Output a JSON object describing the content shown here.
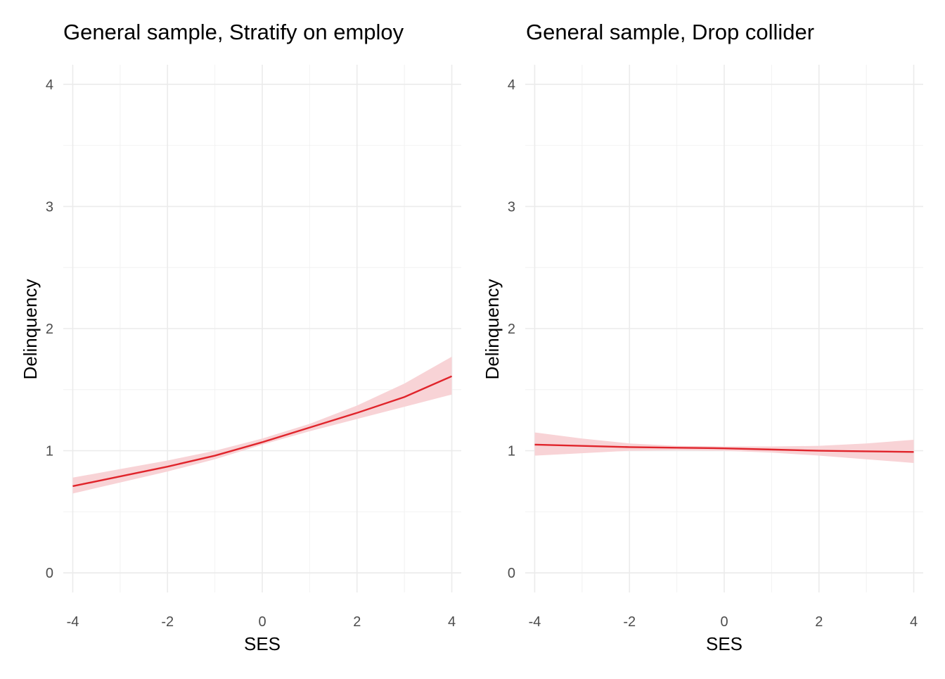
{
  "chart_data": [
    {
      "type": "line",
      "title": "General sample, Stratify on employ",
      "xlabel": "SES",
      "ylabel": "Delinquency",
      "xlim": [
        -4.2,
        4.2
      ],
      "ylim": [
        -0.16,
        4.16
      ],
      "x_ticks": [
        -4,
        -2,
        0,
        2,
        4
      ],
      "y_ticks": [
        0,
        1,
        2,
        3,
        4
      ],
      "grid": true,
      "line_color": "#e0242b",
      "band_color": "#f8d3d6",
      "series": [
        {
          "x": [
            -4,
            -3,
            -2,
            -1,
            0,
            1,
            2,
            3,
            4
          ],
          "y": [
            0.71,
            0.79,
            0.87,
            0.96,
            1.07,
            1.19,
            1.31,
            1.44,
            1.61
          ],
          "lower": [
            0.65,
            0.74,
            0.83,
            0.93,
            1.05,
            1.16,
            1.26,
            1.36,
            1.46
          ],
          "upper": [
            0.78,
            0.85,
            0.92,
            1.0,
            1.1,
            1.22,
            1.37,
            1.55,
            1.77
          ]
        }
      ]
    },
    {
      "type": "line",
      "title": "General sample, Drop collider",
      "xlabel": "SES",
      "ylabel": "Delinquency",
      "xlim": [
        -4.2,
        4.2
      ],
      "ylim": [
        -0.16,
        4.16
      ],
      "x_ticks": [
        -4,
        -2,
        0,
        2,
        4
      ],
      "y_ticks": [
        0,
        1,
        2,
        3,
        4
      ],
      "grid": true,
      "line_color": "#e0242b",
      "band_color": "#f8d3d6",
      "series": [
        {
          "x": [
            -4,
            -3,
            -2,
            -1,
            0,
            1,
            2,
            3,
            4
          ],
          "y": [
            1.05,
            1.04,
            1.03,
            1.025,
            1.02,
            1.01,
            1.0,
            0.995,
            0.99
          ],
          "lower": [
            0.96,
            0.98,
            1.0,
            1.005,
            1.0,
            0.985,
            0.96,
            0.93,
            0.9
          ],
          "upper": [
            1.15,
            1.1,
            1.06,
            1.04,
            1.035,
            1.035,
            1.04,
            1.06,
            1.09
          ]
        }
      ]
    }
  ]
}
